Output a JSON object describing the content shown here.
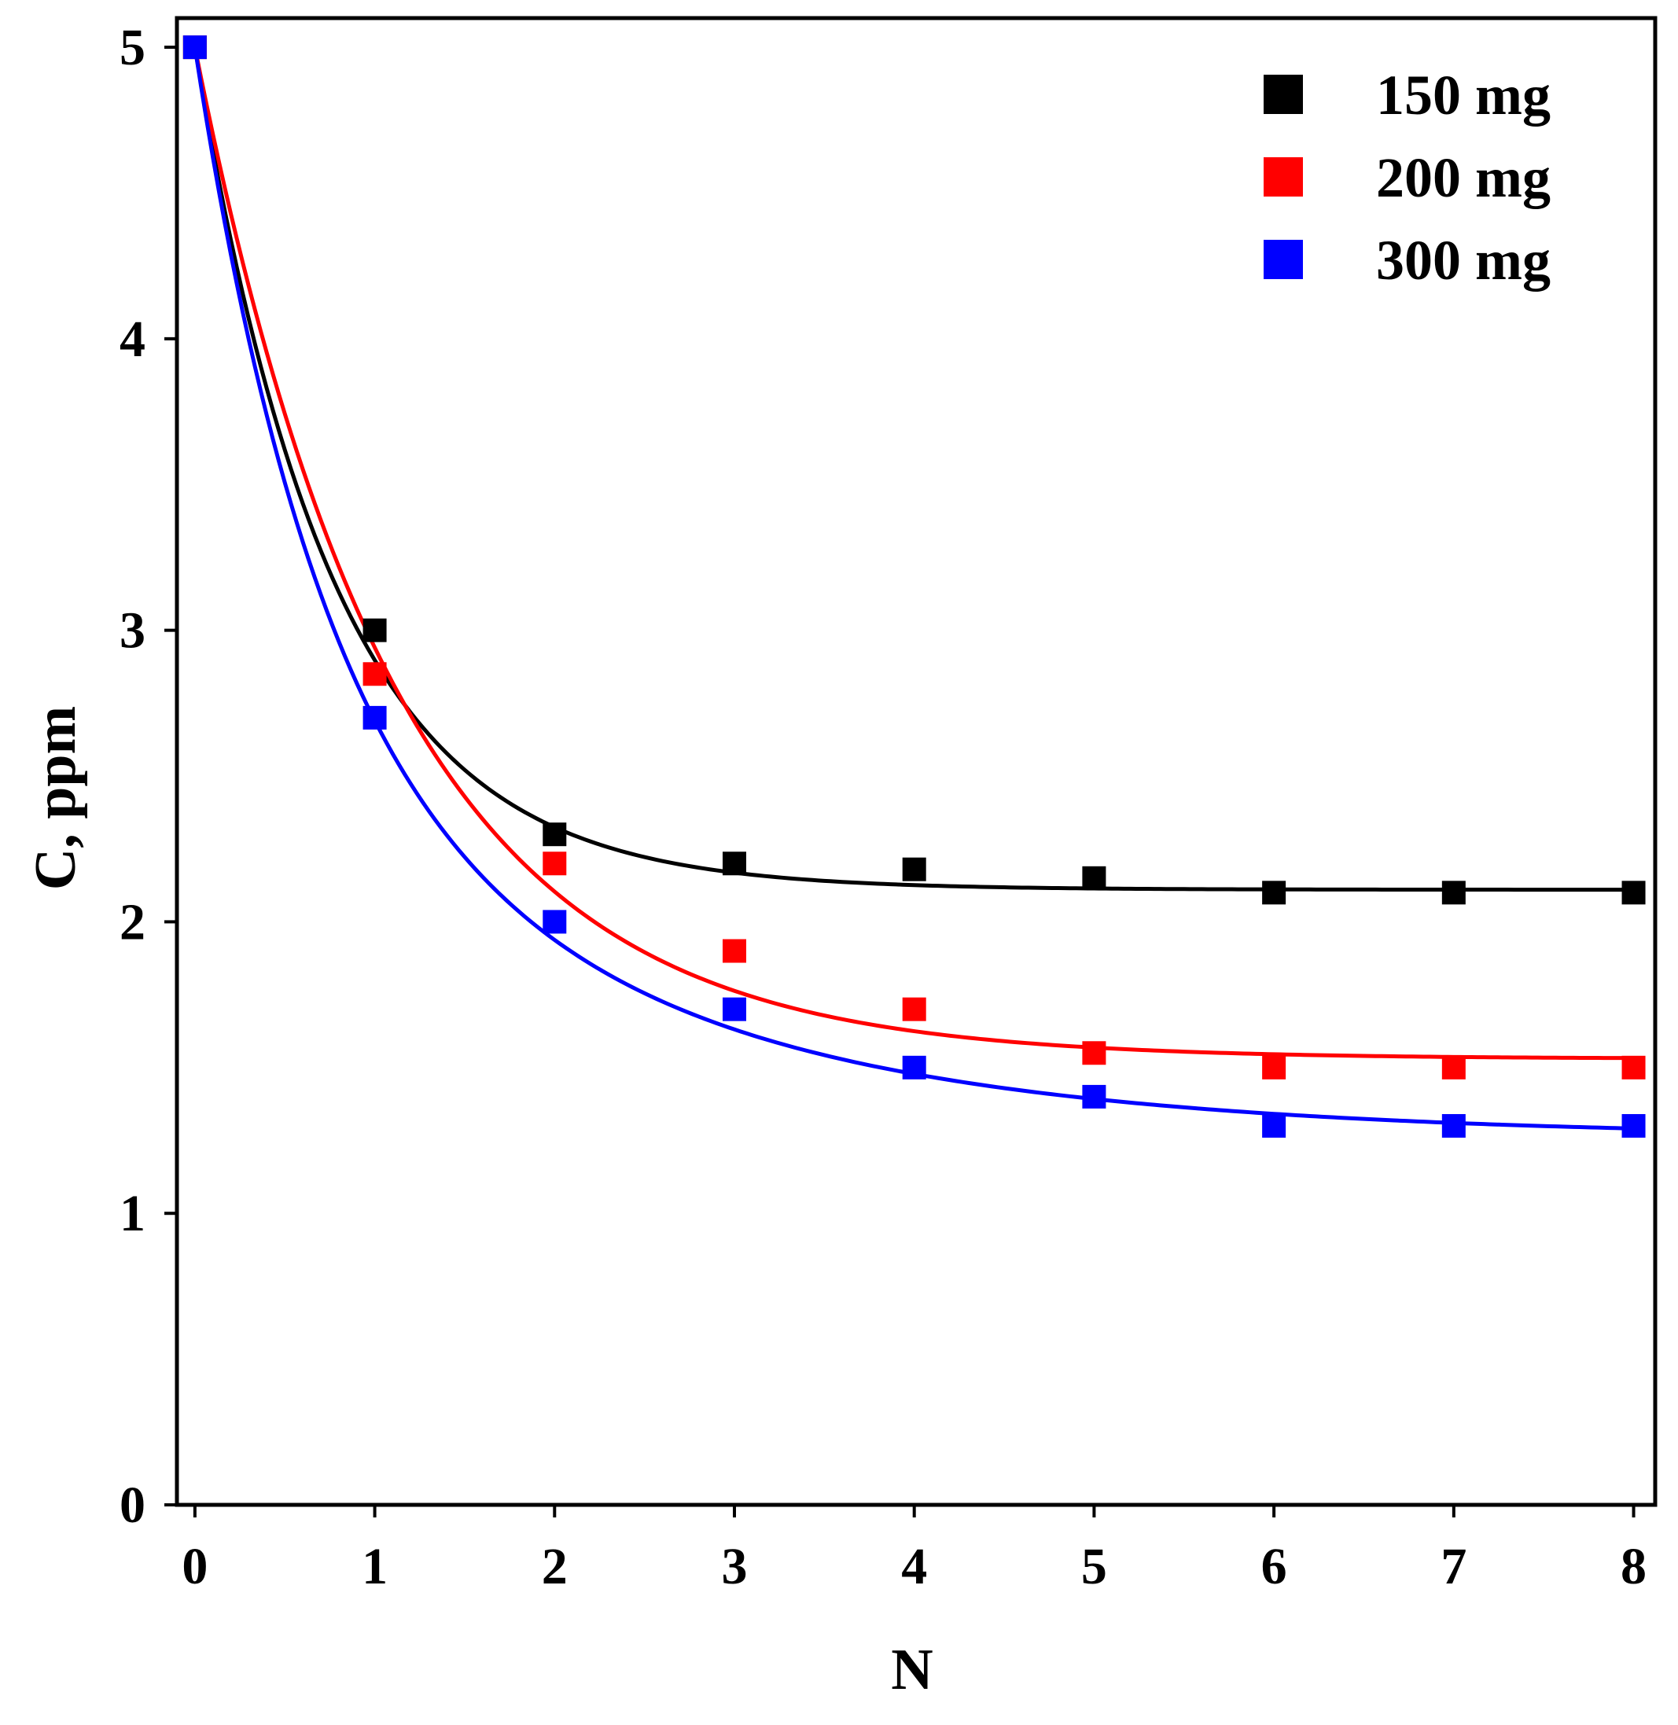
{
  "chart_data": {
    "type": "scatter",
    "title": "",
    "xlabel": "N",
    "ylabel": "C, ppm",
    "xlim": [
      -0.1,
      8.12
    ],
    "ylim": [
      0,
      5.1
    ],
    "xticks": [
      0,
      1,
      2,
      3,
      4,
      5,
      6,
      7,
      8
    ],
    "yticks": [
      0,
      1,
      2,
      3,
      4,
      5
    ],
    "xtick_labels": [
      "0",
      "1",
      "2",
      "3",
      "4",
      "5",
      "6",
      "7",
      "8"
    ],
    "ytick_labels": [
      "0",
      "1",
      "2",
      "3",
      "4",
      "5"
    ],
    "grid": false,
    "legend_position": "top-right",
    "marker": "square",
    "series": [
      {
        "name": "150 mg",
        "color": "#000000",
        "x": [
          0,
          1,
          2,
          3,
          4,
          5,
          6,
          7,
          8
        ],
        "y": [
          5.0,
          3.0,
          2.3,
          2.2,
          2.18,
          2.15,
          2.1,
          2.1,
          2.1
        ],
        "fit": {
          "type": "exponential_decay",
          "plateau": 2.11,
          "amplitude": 2.89,
          "rate": 1.3
        }
      },
      {
        "name": "200 mg",
        "color": "#ff0000",
        "x": [
          0,
          1,
          2,
          3,
          4,
          5,
          6,
          7,
          8
        ],
        "y": [
          5.0,
          2.85,
          2.2,
          1.9,
          1.7,
          1.55,
          1.5,
          1.5,
          1.5
        ],
        "fit": {
          "type": "exponential_decay",
          "plateau": 1.53,
          "amplitude": 3.47,
          "rate": 0.9
        }
      },
      {
        "name": "300 mg",
        "color": "#0000ff",
        "x": [
          0,
          1,
          2,
          3,
          4,
          5,
          6,
          7,
          8
        ],
        "y": [
          5.0,
          2.7,
          2.0,
          1.7,
          1.5,
          1.4,
          1.3,
          1.3,
          1.3
        ],
        "fit": {
          "type": "double_exponential_decay",
          "plateau": 1.26,
          "amplitude1": 2.3,
          "rate1": 1.45,
          "amplitude2": 1.44,
          "rate2": 0.48
        }
      }
    ]
  }
}
